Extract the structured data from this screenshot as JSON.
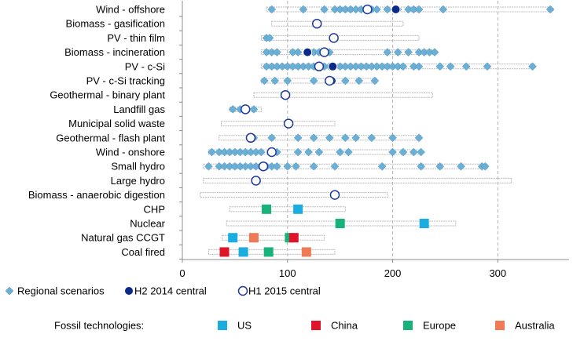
{
  "chart_data": {
    "type": "scatter",
    "orientation": "horizontal",
    "xlim": [
      0,
      380
    ],
    "xticks": [
      0,
      100,
      200,
      300
    ],
    "grid": true,
    "categories": [
      "Wind - offshore",
      "Biomass - gasification",
      "PV - thin film",
      "Biomass - incineration",
      "PV - c-Si",
      "PV - c-Si tracking",
      "Geothermal - binary plant",
      "Landfill gas",
      "Municipal solid waste",
      "Geothermal - flash plant",
      "Wind - onshore",
      "Small hydro",
      "Large hydro",
      "Biomass - anaerobic digestion",
      "CHP",
      "Nuclear",
      "Natural gas CCGT",
      "Coal fired"
    ],
    "ranges": [
      [
        80,
        350
      ],
      [
        85,
        210
      ],
      [
        75,
        225
      ],
      [
        75,
        240
      ],
      [
        75,
        335
      ],
      [
        75,
        185
      ],
      [
        68,
        238
      ],
      [
        45,
        75
      ],
      [
        37,
        145
      ],
      [
        35,
        227
      ],
      [
        25,
        228
      ],
      [
        20,
        290
      ],
      [
        20,
        313
      ],
      [
        17,
        195
      ],
      [
        45,
        155
      ],
      [
        42,
        260
      ],
      [
        38,
        135
      ],
      [
        25,
        145
      ]
    ],
    "series": [
      {
        "name": "Regional scenarios",
        "marker": "diamond",
        "color": "#6aafd6",
        "points": [
          [
            0,
            85
          ],
          [
            0,
            115
          ],
          [
            0,
            135
          ],
          [
            0,
            145
          ],
          [
            0,
            150
          ],
          [
            0,
            155
          ],
          [
            0,
            160
          ],
          [
            0,
            165
          ],
          [
            0,
            170
          ],
          [
            0,
            180
          ],
          [
            0,
            185
          ],
          [
            0,
            195
          ],
          [
            0,
            205
          ],
          [
            0,
            215
          ],
          [
            0,
            220
          ],
          [
            0,
            225
          ],
          [
            0,
            248
          ],
          [
            0,
            350
          ],
          [
            2,
            80
          ],
          [
            2,
            83
          ],
          [
            3,
            80
          ],
          [
            3,
            85
          ],
          [
            3,
            90
          ],
          [
            3,
            105
          ],
          [
            3,
            110
          ],
          [
            3,
            125
          ],
          [
            3,
            130
          ],
          [
            3,
            140
          ],
          [
            3,
            195
          ],
          [
            3,
            205
          ],
          [
            3,
            215
          ],
          [
            3,
            225
          ],
          [
            3,
            230
          ],
          [
            3,
            235
          ],
          [
            3,
            240
          ],
          [
            4,
            80
          ],
          [
            4,
            85
          ],
          [
            4,
            90
          ],
          [
            4,
            95
          ],
          [
            4,
            100
          ],
          [
            4,
            105
          ],
          [
            4,
            110
          ],
          [
            4,
            115
          ],
          [
            4,
            120
          ],
          [
            4,
            125
          ],
          [
            4,
            135
          ],
          [
            4,
            140
          ],
          [
            4,
            145
          ],
          [
            4,
            150
          ],
          [
            4,
            155
          ],
          [
            4,
            160
          ],
          [
            4,
            165
          ],
          [
            4,
            170
          ],
          [
            4,
            175
          ],
          [
            4,
            180
          ],
          [
            4,
            185
          ],
          [
            4,
            190
          ],
          [
            4,
            195
          ],
          [
            4,
            200
          ],
          [
            4,
            205
          ],
          [
            4,
            210
          ],
          [
            4,
            220
          ],
          [
            4,
            225
          ],
          [
            4,
            245
          ],
          [
            4,
            255
          ],
          [
            4,
            270
          ],
          [
            4,
            290
          ],
          [
            4,
            333
          ],
          [
            5,
            78
          ],
          [
            5,
            88
          ],
          [
            5,
            100
          ],
          [
            5,
            125
          ],
          [
            5,
            140
          ],
          [
            5,
            155
          ],
          [
            5,
            168
          ],
          [
            5,
            183
          ],
          [
            7,
            48
          ],
          [
            7,
            55
          ],
          [
            7,
            68
          ],
          [
            9,
            68
          ],
          [
            9,
            85
          ],
          [
            9,
            110
          ],
          [
            9,
            125
          ],
          [
            9,
            140
          ],
          [
            9,
            155
          ],
          [
            9,
            165
          ],
          [
            9,
            180
          ],
          [
            9,
            200
          ],
          [
            9,
            225
          ],
          [
            10,
            28
          ],
          [
            10,
            35
          ],
          [
            10,
            40
          ],
          [
            10,
            45
          ],
          [
            10,
            50
          ],
          [
            10,
            55
          ],
          [
            10,
            60
          ],
          [
            10,
            65
          ],
          [
            10,
            70
          ],
          [
            10,
            75
          ],
          [
            10,
            90
          ],
          [
            10,
            110
          ],
          [
            10,
            120
          ],
          [
            10,
            130
          ],
          [
            10,
            150
          ],
          [
            10,
            158
          ],
          [
            10,
            200
          ],
          [
            10,
            210
          ],
          [
            10,
            220
          ],
          [
            10,
            227
          ],
          [
            11,
            25
          ],
          [
            11,
            35
          ],
          [
            11,
            40
          ],
          [
            11,
            45
          ],
          [
            11,
            50
          ],
          [
            11,
            55
          ],
          [
            11,
            60
          ],
          [
            11,
            65
          ],
          [
            11,
            70
          ],
          [
            11,
            80
          ],
          [
            11,
            85
          ],
          [
            11,
            90
          ],
          [
            11,
            100
          ],
          [
            11,
            108
          ],
          [
            11,
            125
          ],
          [
            11,
            145
          ],
          [
            11,
            190
          ],
          [
            11,
            227
          ],
          [
            11,
            245
          ],
          [
            11,
            265
          ],
          [
            11,
            285
          ],
          [
            11,
            288
          ]
        ]
      },
      {
        "name": "H2 2014 central",
        "marker": "filled-circle",
        "color": "#0a2a8a",
        "points": [
          [
            0,
            203
          ],
          [
            3,
            119
          ],
          [
            4,
            143
          ],
          [
            5,
            142
          ],
          [
            10,
            85
          ]
        ]
      },
      {
        "name": "H1 2015 central",
        "marker": "open-circle",
        "color": "#1f3b9a",
        "points": [
          [
            0,
            176
          ],
          [
            1,
            128
          ],
          [
            2,
            144
          ],
          [
            3,
            135
          ],
          [
            4,
            130
          ],
          [
            5,
            140
          ],
          [
            6,
            98
          ],
          [
            7,
            60
          ],
          [
            8,
            101
          ],
          [
            9,
            65
          ],
          [
            10,
            85
          ],
          [
            11,
            77
          ],
          [
            12,
            70
          ],
          [
            13,
            145
          ]
        ]
      }
    ],
    "fossil_points": [
      {
        "category": 14,
        "region": "Europe",
        "value": 80
      },
      {
        "category": 14,
        "region": "US",
        "value": 110
      },
      {
        "category": 15,
        "region": "Europe",
        "value": 150
      },
      {
        "category": 15,
        "region": "US",
        "value": 230
      },
      {
        "category": 16,
        "region": "US",
        "value": 48
      },
      {
        "category": 16,
        "region": "Australia",
        "value": 68
      },
      {
        "category": 16,
        "region": "Europe",
        "value": 102
      },
      {
        "category": 16,
        "region": "China",
        "value": 106
      },
      {
        "category": 17,
        "region": "China",
        "value": 40
      },
      {
        "category": 17,
        "region": "US",
        "value": 58
      },
      {
        "category": 17,
        "region": "Europe",
        "value": 82
      },
      {
        "category": 17,
        "region": "Australia",
        "value": 118
      }
    ],
    "legend": {
      "placement": "bottom",
      "fossil_title": "Fossil technologies:",
      "regions": [
        {
          "name": "US",
          "color": "#1aaee0"
        },
        {
          "name": "China",
          "color": "#e01428"
        },
        {
          "name": "Europe",
          "color": "#17b37a"
        },
        {
          "name": "Australia",
          "color": "#ef7a55"
        }
      ]
    }
  }
}
